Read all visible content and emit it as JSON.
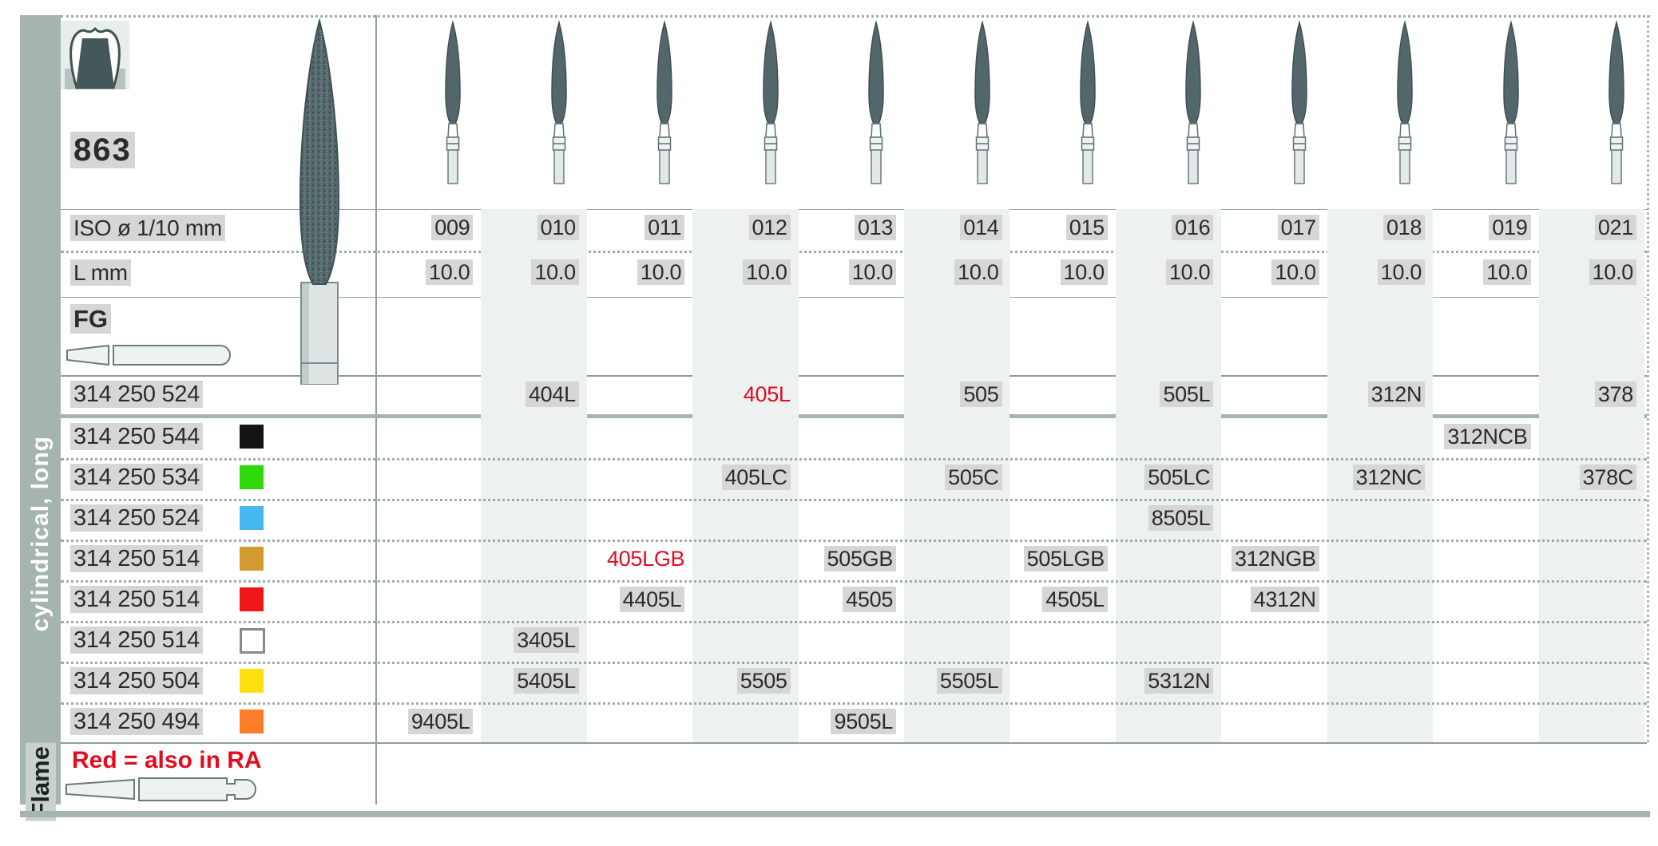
{
  "page": {
    "figure_number": "863",
    "shank_type_label": "FG",
    "note": "Red = also in RA",
    "accent_red": "#e30b20",
    "band_color": "#edf1ef",
    "frame_color": "#a6b4b0"
  },
  "sidebar": {
    "group_label": "cylindrical, long",
    "shape_label": "Flame"
  },
  "table": {
    "iso_label": "ISO ø 1/10 mm",
    "l_label": "L mm",
    "columns": [
      "009",
      "010",
      "011",
      "012",
      "013",
      "014",
      "015",
      "016",
      "017",
      "018",
      "019",
      "021"
    ],
    "l_values": [
      "10.0",
      "10.0",
      "10.0",
      "10.0",
      "10.0",
      "10.0",
      "10.0",
      "10.0",
      "10.0",
      "10.0",
      "10.0",
      "10.0"
    ],
    "rows": [
      {
        "code": "314 250 524",
        "chip_color": null,
        "cells": [
          {
            "col": "010",
            "text": "404L"
          },
          {
            "col": "012",
            "text": "405L",
            "red": true
          },
          {
            "col": "014",
            "text": "505"
          },
          {
            "col": "016",
            "text": "505L"
          },
          {
            "col": "018",
            "text": "312N"
          },
          {
            "col": "021",
            "text": "378"
          }
        ]
      },
      {
        "code": "314 250 544",
        "chip_color": "#141414",
        "cells": [
          {
            "col": "019",
            "text": "312NCB"
          }
        ]
      },
      {
        "code": "314 250 534",
        "chip_color": "#2fd80a",
        "cells": [
          {
            "col": "012",
            "text": "405LC"
          },
          {
            "col": "014",
            "text": "505C"
          },
          {
            "col": "016",
            "text": "505LC"
          },
          {
            "col": "018",
            "text": "312NC"
          },
          {
            "col": "021",
            "text": "378C"
          }
        ]
      },
      {
        "code": "314 250 524",
        "chip_color": "#45b8f1",
        "cells": [
          {
            "col": "016",
            "text": "8505L"
          }
        ]
      },
      {
        "code": "314 250 514",
        "chip_color": "#d29a2f",
        "cells": [
          {
            "col": "011",
            "text": "405LGB",
            "red": true
          },
          {
            "col": "013",
            "text": "505GB"
          },
          {
            "col": "015",
            "text": "505LGB"
          },
          {
            "col": "017",
            "text": "312NGB"
          }
        ]
      },
      {
        "code": "314 250 514",
        "chip_color": "#ef1616",
        "cells": [
          {
            "col": "011",
            "text": "4405L"
          },
          {
            "col": "013",
            "text": "4505"
          },
          {
            "col": "015",
            "text": "4505L"
          },
          {
            "col": "017",
            "text": "4312N"
          }
        ]
      },
      {
        "code": "314 250 514",
        "chip_color": "#ffffff",
        "chip_border": true,
        "cells": [
          {
            "col": "010",
            "text": "3405L"
          }
        ]
      },
      {
        "code": "314 250 504",
        "chip_color": "#fbe00d",
        "cells": [
          {
            "col": "010",
            "text": "5405L"
          },
          {
            "col": "012",
            "text": "5505"
          },
          {
            "col": "014",
            "text": "5505L"
          },
          {
            "col": "016",
            "text": "5312N"
          }
        ]
      },
      {
        "code": "314 250 494",
        "chip_color": "#fc7d27",
        "cells": [
          {
            "col": "009",
            "text": "9405L"
          },
          {
            "col": "013",
            "text": "9505L"
          }
        ]
      }
    ]
  }
}
